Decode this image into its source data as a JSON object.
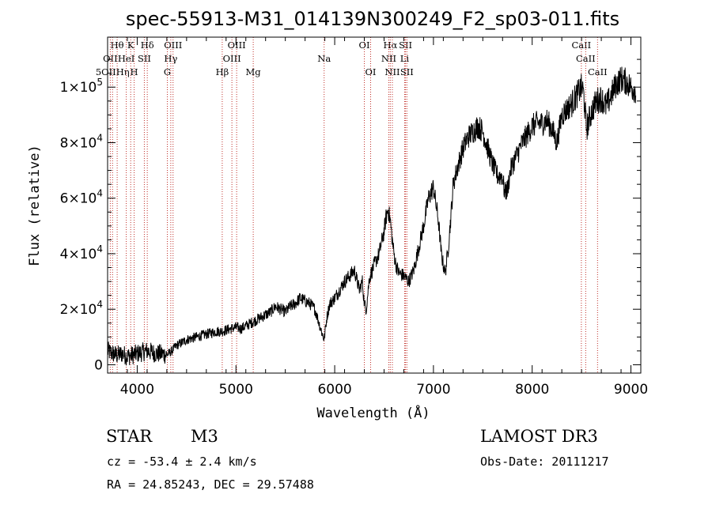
{
  "chart_data": {
    "type": "line",
    "title": "spec-55913-M31_014139N300249_F2_sp03-011.fits",
    "xlabel": "Wavelength (Å)",
    "ylabel": "Flux (relative)",
    "xlim": [
      3700,
      9100
    ],
    "ylim": [
      -3000,
      118000
    ],
    "x_ticks": [
      4000,
      5000,
      6000,
      7000,
      8000,
      9000
    ],
    "x_tick_labels": [
      "4000",
      "5000",
      "6000",
      "7000",
      "8000",
      "9000"
    ],
    "y_ticks": [
      0,
      20000,
      40000,
      60000,
      80000,
      100000
    ],
    "y_tick_labels": [
      {
        "mant": "0",
        "exp": ""
      },
      {
        "mant": "2×10",
        "exp": "4"
      },
      {
        "mant": "4×10",
        "exp": "4"
      },
      {
        "mant": "6×10",
        "exp": "4"
      },
      {
        "mant": "8×10",
        "exp": "4"
      },
      {
        "mant": "1×10",
        "exp": "5"
      }
    ],
    "series": [
      {
        "name": "flux",
        "x": [
          3700,
          3750,
          3800,
          3850,
          3900,
          3950,
          4000,
          4050,
          4100,
          4150,
          4200,
          4250,
          4300,
          4350,
          4400,
          4450,
          4500,
          4550,
          4600,
          4650,
          4700,
          4750,
          4800,
          4850,
          4900,
          4950,
          5000,
          5050,
          5100,
          5150,
          5200,
          5250,
          5300,
          5350,
          5400,
          5450,
          5500,
          5550,
          5600,
          5650,
          5700,
          5750,
          5800,
          5850,
          5893,
          5920,
          5950,
          6000,
          6050,
          6100,
          6150,
          6200,
          6250,
          6280,
          6300,
          6320,
          6350,
          6400,
          6450,
          6480,
          6500,
          6520,
          6540,
          6563,
          6580,
          6600,
          6620,
          6650,
          6700,
          6750,
          6800,
          6850,
          6900,
          6950,
          7000,
          7050,
          7080,
          7100,
          7120,
          7150,
          7180,
          7200,
          7250,
          7300,
          7350,
          7400,
          7450,
          7500,
          7550,
          7600,
          7650,
          7700,
          7720,
          7750,
          7780,
          7800,
          7850,
          7900,
          7950,
          8000,
          8050,
          8100,
          8150,
          8200,
          8250,
          8300,
          8350,
          8400,
          8450,
          8500,
          8520,
          8550,
          8600,
          8650,
          8700,
          8750,
          8800,
          8850,
          8900,
          8950,
          9000,
          9050
        ],
        "y": [
          5000,
          4000,
          3500,
          4000,
          3000,
          3500,
          4000,
          4500,
          5000,
          4500,
          4000,
          4000,
          3500,
          5000,
          7000,
          8000,
          9000,
          9500,
          10000,
          10500,
          11000,
          11500,
          12000,
          12000,
          12500,
          13000,
          13500,
          13000,
          14000,
          15000,
          16000,
          17000,
          18000,
          19000,
          21000,
          20000,
          19000,
          21000,
          22000,
          24000,
          23000,
          22000,
          20000,
          14000,
          9000,
          17000,
          22000,
          24000,
          27000,
          30000,
          32000,
          34000,
          27000,
          30000,
          22000,
          20000,
          31000,
          36000,
          40000,
          45000,
          48000,
          53000,
          56000,
          52000,
          46000,
          40000,
          36000,
          33000,
          32000,
          30000,
          34000,
          42000,
          50000,
          60000,
          64000,
          52000,
          40000,
          36000,
          33000,
          42000,
          55000,
          65000,
          72000,
          78000,
          82000,
          84000,
          86000,
          84000,
          78000,
          72000,
          68000,
          68000,
          62000,
          63000,
          70000,
          72000,
          76000,
          80000,
          83000,
          86000,
          87000,
          87000,
          88000,
          85000,
          80000,
          90000,
          92000,
          94000,
          97000,
          100000,
          98000,
          85000,
          91000,
          95000,
          96000,
          93000,
          97000,
          101000,
          103000,
          102000,
          100000,
          99000
        ]
      }
    ],
    "annotations": [
      {
        "label": "Hθ",
        "x": 3797,
        "row": 0
      },
      {
        "label": "OII",
        "x": 3727,
        "row": 1
      },
      {
        "label": "5OIIHη",
        "x": 3750,
        "row": 2
      },
      {
        "label": "K",
        "x": 3934,
        "row": 0
      },
      {
        "label": "HeI",
        "x": 3889,
        "row": 1
      },
      {
        "label": "SII",
        "x": 4072,
        "row": 1
      },
      {
        "label": "H",
        "x": 3969,
        "row": 2
      },
      {
        "label": "Hδ",
        "x": 4102,
        "row": 0
      },
      {
        "label": "OIII",
        "x": 4363,
        "row": 0
      },
      {
        "label": "Hγ",
        "x": 4340,
        "row": 1
      },
      {
        "label": "G",
        "x": 4305,
        "row": 2
      },
      {
        "label": "OIII",
        "x": 5007,
        "row": 0
      },
      {
        "label": "OIII",
        "x": 4959,
        "row": 1
      },
      {
        "label": "Hβ",
        "x": 4861,
        "row": 2
      },
      {
        "label": "Mg",
        "x": 5175,
        "row": 2
      },
      {
        "label": "Na",
        "x": 5893,
        "row": 1
      },
      {
        "label": "OI",
        "x": 6300,
        "row": 0
      },
      {
        "label": "OI",
        "x": 6364,
        "row": 2
      },
      {
        "label": "Hα",
        "x": 6563,
        "row": 0
      },
      {
        "label": "SII",
        "x": 6717,
        "row": 0
      },
      {
        "label": "NII",
        "x": 6548,
        "row": 1
      },
      {
        "label": "Li",
        "x": 6708,
        "row": 1
      },
      {
        "label": "NII",
        "x": 6584,
        "row": 2
      },
      {
        "label": "SII",
        "x": 6731,
        "row": 2
      },
      {
        "label": "CaII",
        "x": 8498,
        "row": 0
      },
      {
        "label": "CaII",
        "x": 8542,
        "row": 1
      },
      {
        "label": "CaII",
        "x": 8662,
        "row": 2
      }
    ]
  },
  "info": {
    "class": "STAR",
    "subclass": "M3",
    "survey": "LAMOST DR3",
    "cz": "cz = -53.4 ± 2.4 km/s",
    "obs_date": "Obs-Date: 20111217",
    "coords": "RA =  24.85243, DEC =  29.57488"
  }
}
